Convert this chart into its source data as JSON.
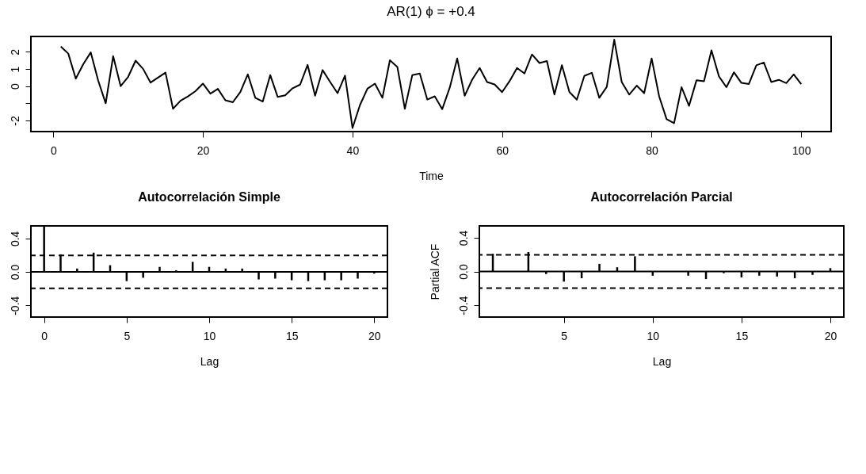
{
  "chart_data": [
    {
      "type": "line",
      "title": "AR(1)  ϕ = +0.4",
      "xlabel": "Time",
      "x": [
        1,
        2,
        3,
        4,
        5,
        6,
        7,
        8,
        9,
        10,
        11,
        12,
        13,
        14,
        15,
        16,
        17,
        18,
        19,
        20,
        21,
        22,
        23,
        24,
        25,
        26,
        27,
        28,
        29,
        30,
        31,
        32,
        33,
        34,
        35,
        36,
        37,
        38,
        39,
        40,
        41,
        42,
        43,
        44,
        45,
        46,
        47,
        48,
        49,
        50,
        51,
        52,
        53,
        54,
        55,
        56,
        57,
        58,
        59,
        60,
        61,
        62,
        63,
        64,
        65,
        66,
        67,
        68,
        69,
        70,
        71,
        72,
        73,
        74,
        75,
        76,
        77,
        78,
        79,
        80,
        81,
        82,
        83,
        84,
        85,
        86,
        87,
        88,
        89,
        90,
        91,
        92,
        93,
        94,
        95,
        96,
        97,
        98,
        99,
        100
      ],
      "series": [
        {
          "color": "#000000",
          "values": [
            2.31,
            1.9,
            0.44,
            1.28,
            1.97,
            0.32,
            -1.0,
            1.75,
            0.0,
            0.54,
            1.49,
            1.01,
            0.21,
            0.5,
            0.79,
            -1.32,
            -0.85,
            -0.6,
            -0.29,
            0.15,
            -0.44,
            -0.16,
            -0.82,
            -0.94,
            -0.34,
            0.69,
            -0.68,
            -0.9,
            0.65,
            -0.63,
            -0.53,
            -0.12,
            0.09,
            1.24,
            -0.56,
            0.94,
            0.25,
            -0.41,
            0.62,
            -2.44,
            -1.1,
            -0.15,
            0.15,
            -0.68,
            1.51,
            1.12,
            -1.32,
            0.65,
            0.74,
            -0.78,
            -0.59,
            -1.34,
            -0.09,
            1.62,
            -0.56,
            0.38,
            1.06,
            0.24,
            0.1,
            -0.35,
            0.29,
            1.06,
            0.74,
            1.85,
            1.35,
            1.47,
            -0.49,
            1.22,
            -0.34,
            -0.79,
            0.6,
            0.78,
            -0.68,
            -0.04,
            2.71,
            0.24,
            -0.49,
            0.03,
            -0.41,
            1.62,
            -0.59,
            -1.93,
            -2.16,
            -0.06,
            -1.15,
            0.35,
            0.29,
            2.09,
            0.57,
            -0.06,
            0.81,
            0.19,
            0.13,
            1.22,
            1.38,
            0.24,
            0.37,
            0.18,
            0.69,
            0.12
          ]
        }
      ],
      "xlim": [
        -3,
        104
      ],
      "xticks": [
        0,
        20,
        40,
        60,
        80,
        100
      ],
      "ylim": [
        -2.65,
        2.9
      ],
      "yticks": [
        -2,
        {
          "value": -1,
          "label": null
        },
        0,
        1,
        2
      ],
      "grid": false
    },
    {
      "type": "bar",
      "title": "Autocorrelación Simple",
      "xlabel": "Lag",
      "x": [
        0,
        1,
        2,
        3,
        4,
        5,
        6,
        7,
        8,
        9,
        10,
        11,
        12,
        13,
        14,
        15,
        16,
        17,
        18,
        19,
        20
      ],
      "series": [
        {
          "color": "#000000",
          "values": [
            0.55,
            0.21,
            0.04,
            0.23,
            0.08,
            -0.11,
            -0.07,
            0.06,
            0.02,
            0.12,
            0.06,
            0.04,
            0.04,
            -0.09,
            -0.08,
            -0.1,
            -0.11,
            -0.1,
            -0.1,
            -0.08,
            -0.02
          ]
        }
      ],
      "xlim": [
        -0.8,
        20.8
      ],
      "xticks": [
        0,
        5,
        10,
        15,
        20
      ],
      "ylim": [
        -0.54,
        0.55
      ],
      "yticks": [
        {
          "value": -0.4,
          "label": "-0.4"
        },
        {
          "value": -0.2,
          "label": null
        },
        {
          "value": 0,
          "label": "0.0"
        },
        {
          "value": 0.2,
          "label": null
        },
        {
          "value": 0.4,
          "label": "0.4"
        }
      ],
      "ref_lines": [
        {
          "axis": "y",
          "value": 0.197,
          "line_style": "dashed",
          "color": "#000000"
        },
        {
          "axis": "y",
          "value": -0.197,
          "line_style": "dashed",
          "color": "#000000"
        },
        {
          "axis": "y",
          "value": 0,
          "line_style": "solid",
          "color": "#000000"
        }
      ],
      "grid": false
    },
    {
      "type": "bar",
      "title": "Autocorrelación Parcial",
      "xlabel": "Lag",
      "ylabel": "Partial ACF",
      "x": [
        1,
        2,
        3,
        4,
        5,
        6,
        7,
        8,
        9,
        10,
        11,
        12,
        13,
        14,
        15,
        16,
        17,
        18,
        19,
        20
      ],
      "series": [
        {
          "color": "#000000",
          "values": [
            0.21,
            null,
            0.23,
            -0.03,
            -0.12,
            -0.08,
            0.09,
            0.05,
            0.18,
            -0.05,
            null,
            -0.05,
            -0.09,
            -0.02,
            -0.07,
            -0.05,
            -0.06,
            -0.08,
            -0.04,
            0.04
          ]
        }
      ],
      "xlim": [
        0.24,
        20.76
      ],
      "xticks": [
        5,
        10,
        15,
        20
      ],
      "ylim": [
        -0.54,
        0.54
      ],
      "yticks": [
        {
          "value": -0.4,
          "label": "-0.4"
        },
        {
          "value": -0.2,
          "label": null
        },
        {
          "value": 0,
          "label": "0.0"
        },
        {
          "value": 0.2,
          "label": null
        },
        {
          "value": 0.4,
          "label": "0.4"
        }
      ],
      "ref_lines": [
        {
          "axis": "y",
          "value": 0.197,
          "line_style": "dashed",
          "color": "#000000"
        },
        {
          "axis": "y",
          "value": -0.197,
          "line_style": "dashed",
          "color": "#000000"
        },
        {
          "axis": "y",
          "value": 0,
          "line_style": "solid",
          "color": "#000000"
        }
      ],
      "grid": false
    }
  ]
}
